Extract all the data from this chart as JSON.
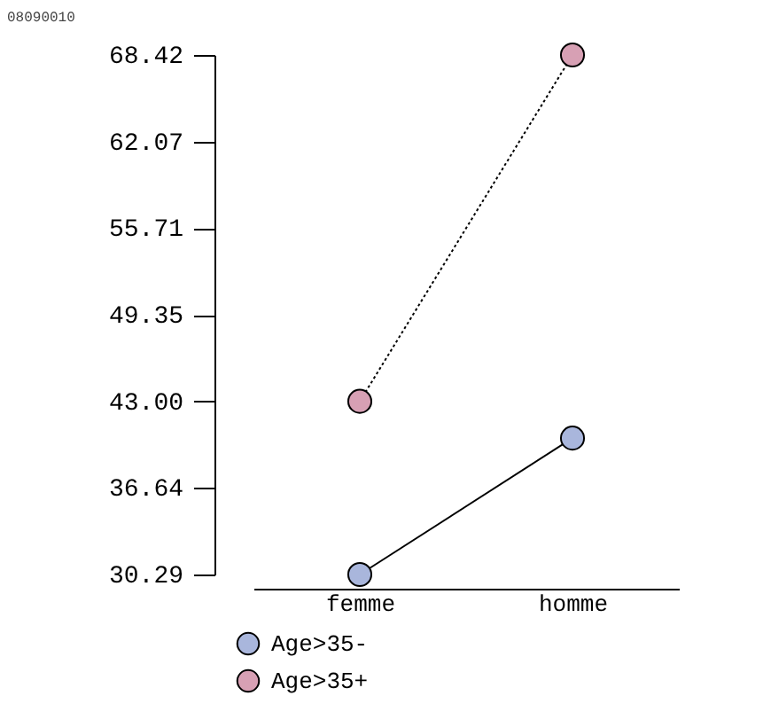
{
  "chart_data": {
    "type": "line",
    "annotations": [
      "08090010"
    ],
    "categories": [
      "femme",
      "homme"
    ],
    "ylim": [
      30.29,
      68.42
    ],
    "yticks": [
      30.29,
      {
        "value": 36.645,
        "label": "36.64"
      },
      {
        "value": 43.0,
        "label": "43.00"
      },
      {
        "value": 49.355,
        "label": "49.35"
      },
      55.71,
      {
        "value": 62.065,
        "label": "62.07"
      },
      68.42
    ],
    "series": [
      {
        "name": "Age>35-",
        "color": "#a9b6dc",
        "values": [
          30.29,
          40.3
        ],
        "line_style": "solid"
      },
      {
        "name": "Age>35+",
        "color": "#d7a0b4",
        "values": [
          43.0,
          68.42
        ],
        "line_style": "dotted"
      }
    ],
    "marker": "circle",
    "legend": "bottom left",
    "grid": false
  }
}
